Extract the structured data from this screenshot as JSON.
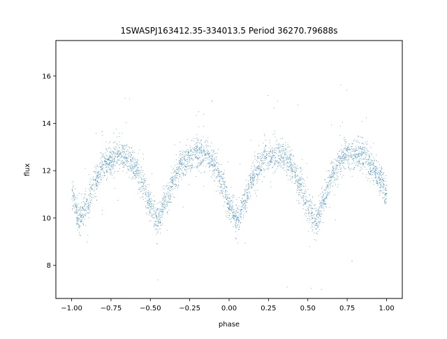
{
  "chart_data": {
    "type": "scatter",
    "title": "1SWASPJ163412.35-334013.5 Period 36270.79688s",
    "xlabel": "phase",
    "ylabel": "flux",
    "xlim": [
      -1.1,
      1.1
    ],
    "ylim": [
      6.6,
      17.5
    ],
    "xticks": [
      -1.0,
      -0.75,
      -0.5,
      -0.25,
      0.0,
      0.25,
      0.5,
      0.75,
      1.0
    ],
    "xtick_labels": [
      "−1.00",
      "−0.75",
      "−0.50",
      "−0.25",
      "0.00",
      "0.25",
      "0.50",
      "0.75",
      "1.00"
    ],
    "yticks": [
      8,
      10,
      12,
      14,
      16
    ],
    "ytick_labels": [
      "8",
      "10",
      "12",
      "14",
      "16"
    ],
    "grid": false,
    "legend": "none",
    "marker_color": "#1f77b4",
    "series": [
      {
        "points_note_x": [
          -1.0,
          -0.95,
          -0.9,
          -0.85,
          -0.8,
          -0.75,
          -0.7,
          -0.65,
          -0.6,
          -0.55,
          -0.5,
          -0.45,
          -0.4,
          -0.35,
          -0.3,
          -0.25,
          -0.2,
          -0.15,
          -0.1,
          -0.05,
          0.0,
          0.05,
          0.1,
          0.15,
          0.2,
          0.25,
          0.3,
          0.35,
          0.4,
          0.45,
          0.5,
          0.55,
          0.6,
          0.65,
          0.7,
          0.75,
          0.8,
          0.85,
          0.9,
          0.95,
          1.0
        ],
        "points_note_y": [
          11.0,
          10.0,
          10.6,
          11.6,
          12.2,
          12.5,
          12.7,
          12.6,
          12.2,
          11.5,
          10.5,
          9.9,
          10.8,
          11.7,
          12.3,
          12.6,
          12.8,
          12.7,
          12.3,
          11.6,
          10.6,
          9.9,
          10.7,
          11.8,
          12.3,
          12.6,
          12.7,
          12.6,
          12.1,
          11.4,
          10.5,
          9.9,
          10.8,
          11.8,
          12.4,
          12.7,
          12.8,
          12.6,
          12.2,
          11.7,
          11.0
        ]
      }
    ]
  }
}
